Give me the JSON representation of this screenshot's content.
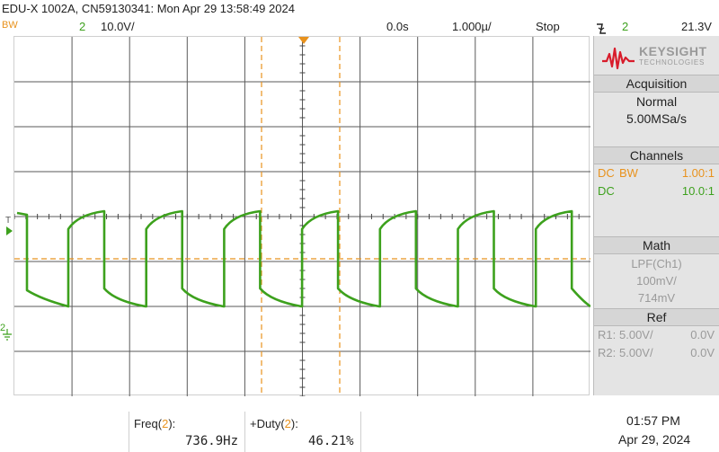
{
  "header": {
    "title": "EDU-X 1002A, CN59130341: Mon Apr 29 13:58:49 2024",
    "bw_label": "BW",
    "channel_number": "2",
    "volts_per_div": "10.0V/",
    "time_offset": "0.0s",
    "time_per_div": "1.000µ/",
    "run_state": "Stop",
    "trigger_icon": "falling-edge-trigger-icon",
    "trigger_source": "2",
    "trigger_level": "21.3V"
  },
  "colors": {
    "ch1": "#e8921d",
    "ch2": "#3da11d",
    "panel": "#e4e4e4"
  },
  "screen_markers": {
    "trigger_level_marker": "T",
    "ch2_ground_marker": "2"
  },
  "panel": {
    "logo_main": "KEYSIGHT",
    "logo_sub": "TECHNOLOGIES",
    "acquisition": {
      "header": "Acquisition",
      "mode": "Normal",
      "sample_rate": "5.00MSa/s"
    },
    "channels": {
      "header": "Channels",
      "rows": [
        {
          "coupling": "DC",
          "bw": "BW",
          "probe": "1.00:1"
        },
        {
          "coupling": "DC",
          "bw": "",
          "probe": "10.0:1"
        }
      ]
    },
    "math": {
      "header": "Math",
      "function": "LPF(Ch1)",
      "scale": "100mV/",
      "offset": "714mV"
    },
    "ref": {
      "header": "Ref",
      "rows": [
        {
          "name": "R1:",
          "scale": "5.00V/",
          "offset": "0.0V"
        },
        {
          "name": "R2:",
          "scale": "5.00V/",
          "offset": "0.0V"
        }
      ]
    }
  },
  "measurements": [
    {
      "label": "Freq",
      "channel": "2",
      "value": "736.9Hz"
    },
    {
      "label": "+Duty",
      "channel": "2",
      "value": "46.21%"
    }
  ],
  "clock": {
    "time": "01:57 PM",
    "date": "Apr 29, 2024"
  }
}
